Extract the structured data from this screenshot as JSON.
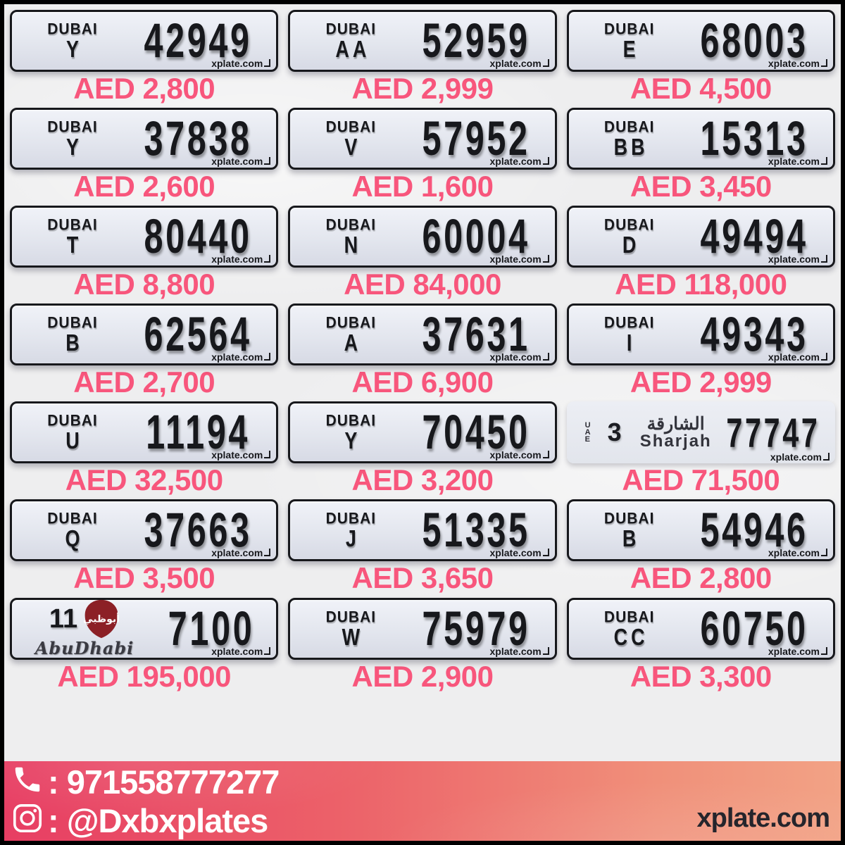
{
  "labels": {
    "dubai_logo": "DUBAI",
    "watermark": "xplate.com"
  },
  "colors": {
    "price_pink": "#f8567c",
    "plate_face": "#e3e6ee",
    "plate_text": "#17181c",
    "footer_gradient_left": "#e73e63",
    "footer_gradient_right": "#f2a285",
    "footer_text": "#ffffff",
    "brand_text": "#25252c"
  },
  "plates": [
    {
      "type": "dubai",
      "code": "Y",
      "number": "42949",
      "price": "AED 2,800"
    },
    {
      "type": "dubai",
      "code": "AA",
      "number": "52959",
      "price": "AED 2,999"
    },
    {
      "type": "dubai",
      "code": "E",
      "number": "68003",
      "price": "AED 4,500"
    },
    {
      "type": "dubai",
      "code": "Y",
      "number": "37838",
      "price": "AED 2,600"
    },
    {
      "type": "dubai",
      "code": "V",
      "number": "57952",
      "price": "AED 1,600"
    },
    {
      "type": "dubai",
      "code": "BB",
      "number": "15313",
      "price": "AED 3,450"
    },
    {
      "type": "dubai",
      "code": "T",
      "number": "80440",
      "price": "AED 8,800"
    },
    {
      "type": "dubai",
      "code": "N",
      "number": "60004",
      "price": "AED 84,000"
    },
    {
      "type": "dubai",
      "code": "D",
      "number": "49494",
      "price": "AED 118,000"
    },
    {
      "type": "dubai",
      "code": "B",
      "number": "62564",
      "price": "AED 2,700"
    },
    {
      "type": "dubai",
      "code": "A",
      "number": "37631",
      "price": "AED 6,900"
    },
    {
      "type": "dubai",
      "code": "I",
      "number": "49343",
      "price": "AED 2,999"
    },
    {
      "type": "dubai",
      "code": "U",
      "number": "11194",
      "price": "AED 32,500"
    },
    {
      "type": "dubai",
      "code": "Y",
      "number": "70450",
      "price": "AED 3,200"
    },
    {
      "type": "sharjah",
      "code": "3",
      "number": "77747",
      "price": "AED 71,500",
      "uae_label": "UAE",
      "arabic_name": "الشارقة",
      "latin_name": "Sharjah"
    },
    {
      "type": "dubai",
      "code": "Q",
      "number": "37663",
      "price": "AED 3,500"
    },
    {
      "type": "dubai",
      "code": "J",
      "number": "51335",
      "price": "AED 3,650"
    },
    {
      "type": "dubai",
      "code": "B",
      "number": "54946",
      "price": "AED 2,800"
    },
    {
      "type": "abudhabi",
      "code": "11",
      "number": "7100",
      "price": "AED 195,000",
      "latin_name": "AbuDhabi",
      "shield_arabic": "أبوظبي"
    },
    {
      "type": "dubai",
      "code": "W",
      "number": "75979",
      "price": "AED 2,900"
    },
    {
      "type": "dubai",
      "code": "CC",
      "number": "60750",
      "price": "AED 3,300"
    }
  ],
  "footer": {
    "phone": ": 971558777277",
    "instagram": ": @Dxbxplates",
    "brand": "xplate.com"
  }
}
